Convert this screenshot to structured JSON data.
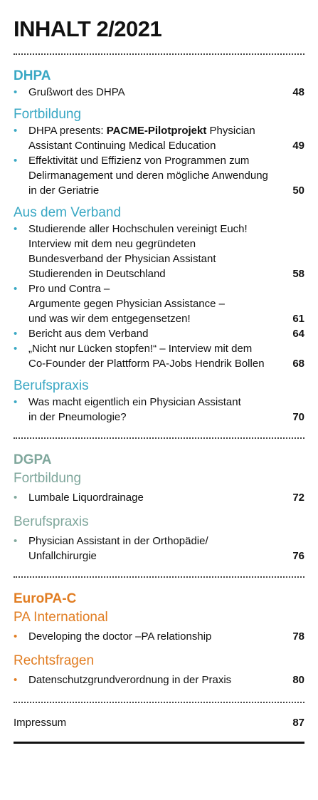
{
  "title": "INHALT 2/2021",
  "colors": {
    "dhpa": "#3aa8c4",
    "dgpa": "#7fa79c",
    "europac": "#e17d22"
  },
  "sections": {
    "dhpa": {
      "name": "DHPA",
      "intro": {
        "text": "Grußwort des DHPA",
        "page": "48"
      },
      "fortbildung": {
        "heading": "Fortbildung",
        "items": [
          {
            "pre": "DHPA presents: ",
            "bold": "PACME-Pilotprojekt",
            "post": " Physician\nAssistant Continuing Medical Education",
            "page": "49"
          },
          {
            "text": "Effektivität und Effizienz von Programmen zum\nDelirmanagement und deren mögliche Anwendung\nin der Geriatrie",
            "page": "50"
          }
        ]
      },
      "verband": {
        "heading": "Aus dem Verband",
        "items": [
          {
            "text": "Studierende aller Hochschulen vereinigt Euch!\nInterview mit dem neu gegründeten\nBundesverband der Physician Assistant\nStudierenden in Deutschland",
            "page": "58"
          },
          {
            "text": "Pro und Contra –\nArgumente gegen Physician Assistance –\nund was wir dem entgegensetzen!",
            "page": "61"
          },
          {
            "text": "Bericht aus dem Verband",
            "page": "64"
          },
          {
            "text": "„Nicht nur Lücken stopfen!“ – Interview mit dem\nCo-Founder der Plattform PA-Jobs Hendrik Bollen",
            "page": "68"
          }
        ]
      },
      "berufspraxis": {
        "heading": "Berufspraxis",
        "items": [
          {
            "text": "Was macht eigentlich ein Physician Assistant\nin der Pneumologie?",
            "page": "70"
          }
        ]
      }
    },
    "dgpa": {
      "name": "DGPA",
      "fortbildung": {
        "heading": "Fortbildung",
        "items": [
          {
            "text": "Lumbale Liquordrainage",
            "page": "72"
          }
        ]
      },
      "berufspraxis": {
        "heading": "Berufspraxis",
        "items": [
          {
            "text": "Physician Assistant in der Orthopädie/\nUnfallchirurgie",
            "page": "76"
          }
        ]
      }
    },
    "europac": {
      "name": "EuroPA-C",
      "international": {
        "heading": "PA International",
        "items": [
          {
            "text": "Developing the doctor –PA relationship",
            "page": "78"
          }
        ]
      },
      "recht": {
        "heading": "Rechtsfragen",
        "items": [
          {
            "text": "Datenschutzgrundverordnung in der Praxis",
            "page": "80"
          }
        ]
      }
    }
  },
  "impressum": {
    "text": "Impressum",
    "page": "87"
  }
}
